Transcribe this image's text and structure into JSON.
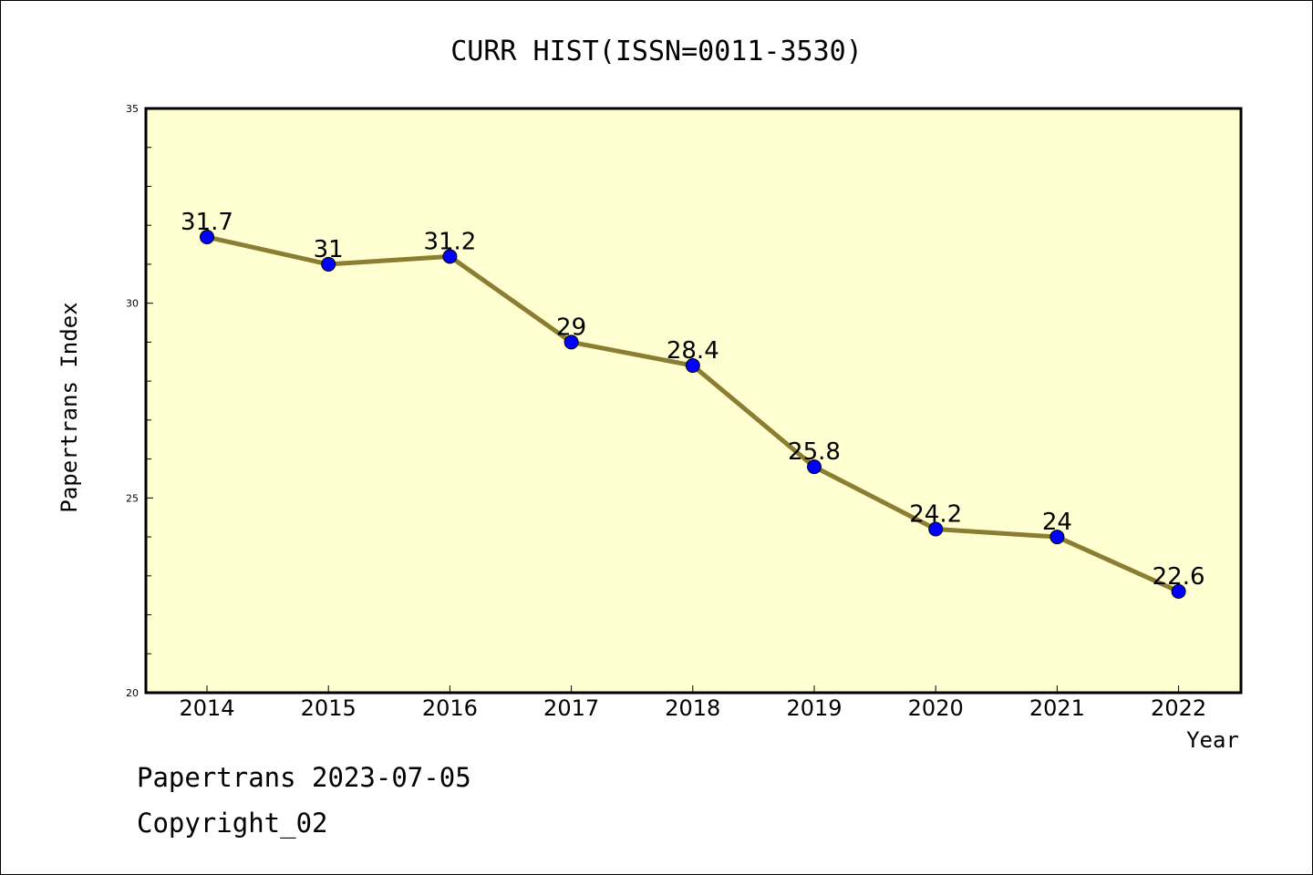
{
  "chart_data": {
    "type": "line",
    "title": "CURR HIST(ISSN=0011-3530)",
    "xlabel": "Year",
    "ylabel": "Papertrans Index",
    "ylim": [
      20,
      35
    ],
    "yticks": [
      20,
      25,
      30,
      35
    ],
    "categories": [
      "2014",
      "2015",
      "2016",
      "2017",
      "2018",
      "2019",
      "2020",
      "2021",
      "2022"
    ],
    "series": [
      {
        "values": [
          31.7,
          31,
          31.2,
          29,
          28.4,
          25.8,
          24.2,
          24,
          22.6
        ],
        "labels": [
          "31.7",
          "31",
          "31.2",
          "29",
          "28.4",
          "25.8",
          "24.2",
          "24",
          "22.6"
        ]
      }
    ],
    "grid": false,
    "colors": {
      "plot_background": "#ffffd2",
      "line": "#8b7d32",
      "marker": "#0000ff"
    }
  },
  "footer": {
    "line1": "Papertrans 2023-07-05",
    "line2": "Copyright_02"
  }
}
